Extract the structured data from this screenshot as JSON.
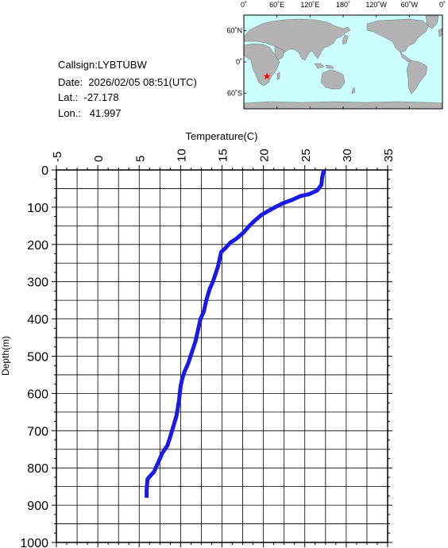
{
  "info": {
    "callsign": "Callsign:LYBTUBW",
    "date": "Date:  2026/02/05 08:51(UTC)",
    "lat": "Lat.:  -27.178",
    "lon": "Lon.:   41.997"
  },
  "map": {
    "top_labels": [
      "0˚",
      "60˚E",
      "120˚E",
      "180˚",
      "120˚W",
      "60˚W",
      "0˚"
    ],
    "left_labels": [
      "60˚N",
      "0˚",
      "60˚S"
    ],
    "marker": {
      "lat": -27.178,
      "lon": 41.997,
      "color": "#ff0000"
    },
    "ocean_color": "#ccffff",
    "land_color": "#b3b3b3"
  },
  "chart_data": {
    "type": "line",
    "xlabel": "Temperature(C)",
    "ylabel": "Depth(m)",
    "xlim": [
      -5,
      35
    ],
    "ylim": [
      0,
      1000
    ],
    "y_inverted": true,
    "x_ticks": [
      "-5",
      "0",
      "5",
      "10",
      "15",
      "20",
      "25",
      "30",
      "35"
    ],
    "y_ticks": [
      "0",
      "100",
      "200",
      "300",
      "400",
      "500",
      "600",
      "700",
      "800",
      "900",
      "1000"
    ],
    "grid": true,
    "line_color": "#1a1ae6",
    "series": [
      {
        "x": [
          27.3,
          27.1,
          27.0,
          26.5,
          26.0,
          25.5,
          24.5,
          23.5,
          22.3,
          21.4,
          20.6,
          19.8,
          19.0,
          18.3,
          17.5,
          16.7,
          16.0,
          15.4,
          14.9,
          14.7,
          14.5,
          14.2,
          13.9,
          13.5,
          13.1,
          12.8,
          12.4,
          12.2,
          12.0,
          11.8,
          11.5,
          11.2,
          10.9,
          10.5,
          10.2,
          10.0,
          9.8,
          9.5,
          9.1,
          8.7,
          8.4,
          7.8,
          7.2,
          6.8,
          6.4,
          6.0,
          5.9,
          5.9
        ],
        "y": [
          0,
          20,
          40,
          55,
          60,
          65,
          70,
          80,
          90,
          100,
          110,
          120,
          135,
          150,
          170,
          185,
          195,
          210,
          220,
          240,
          260,
          280,
          300,
          320,
          350,
          380,
          400,
          420,
          440,
          460,
          480,
          500,
          520,
          540,
          560,
          580,
          620,
          660,
          690,
          720,
          740,
          760,
          790,
          810,
          820,
          830,
          860,
          880
        ]
      }
    ]
  }
}
